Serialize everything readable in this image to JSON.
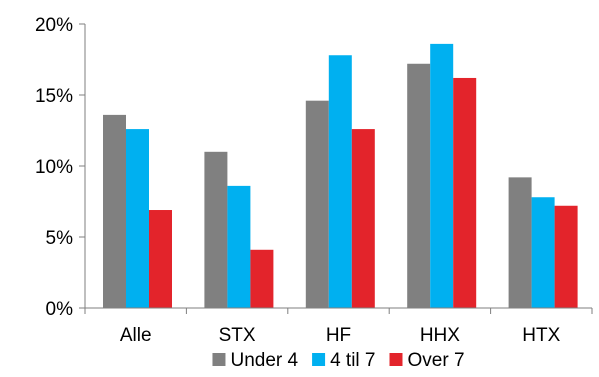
{
  "chart_data": {
    "type": "bar",
    "categories": [
      "Alle",
      "STX",
      "HF",
      "HHX",
      "HTX"
    ],
    "series": [
      {
        "name": "Under 4",
        "color": "#808080",
        "values": [
          13.6,
          11.0,
          14.6,
          17.2,
          9.2
        ]
      },
      {
        "name": "4 til 7",
        "color": "#00b0f0",
        "values": [
          12.6,
          8.6,
          17.8,
          18.6,
          7.8
        ]
      },
      {
        "name": "Over 7",
        "color": "#e3242b",
        "values": [
          6.9,
          4.1,
          12.6,
          16.2,
          7.2
        ]
      }
    ],
    "ylim": [
      0,
      20
    ],
    "yticks": [
      0,
      5,
      10,
      15,
      20
    ],
    "ytick_labels": [
      "0%",
      "5%",
      "10%",
      "15%",
      "20%"
    ],
    "grid": false,
    "legend_position": "bottom"
  }
}
